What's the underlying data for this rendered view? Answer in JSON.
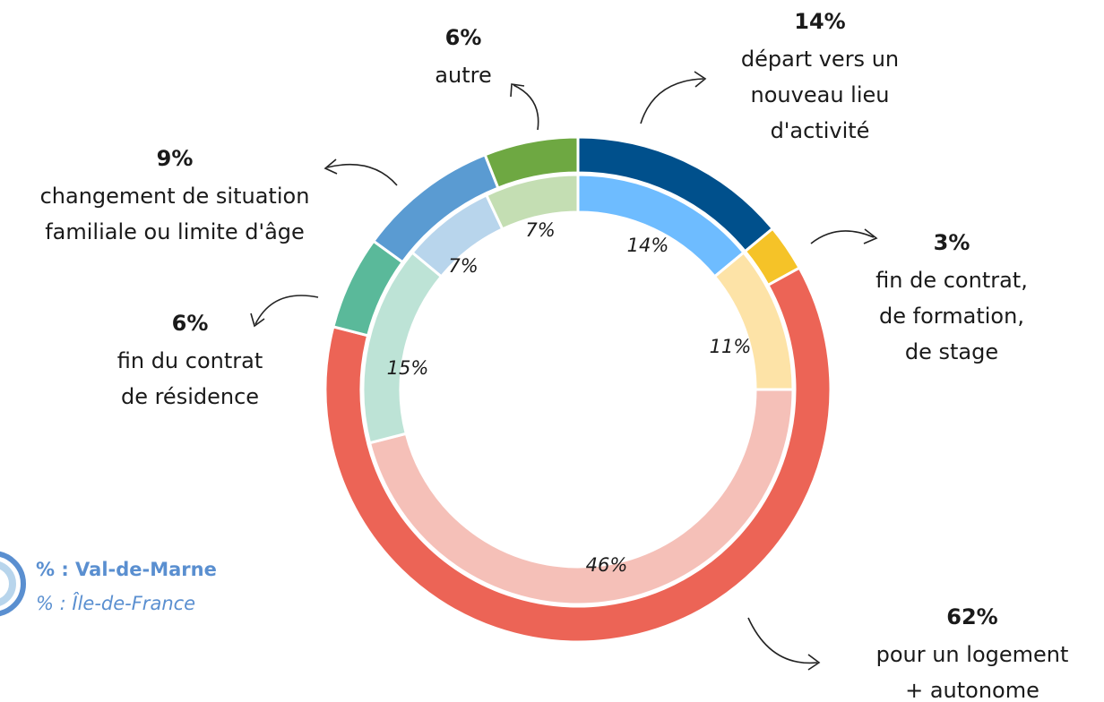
{
  "chart_data": {
    "type": "donut",
    "categories": [
      [
        "départ vers un",
        "nouveau lieu",
        "d'activité"
      ],
      [
        "fin de contrat,",
        "de formation,",
        "de stage"
      ],
      [
        "pour un logement",
        "+ autonome"
      ],
      [
        "fin du contrat",
        "de résidence"
      ],
      [
        "changement de situation",
        "familiale ou limite d'âge"
      ],
      [
        "autre"
      ]
    ],
    "series": [
      {
        "name": "% : Val-de-Marne",
        "values": [
          14,
          3,
          62,
          6,
          9,
          6
        ],
        "value_labels": [
          "14%",
          "3%",
          "62%",
          "6%",
          "9%",
          "6%"
        ],
        "colors": [
          "#00508c",
          "#f5c328",
          "#ec6456",
          "#5ab99a",
          "#5a9bd2",
          "#6ea842"
        ]
      },
      {
        "name": "% : Île-de-France",
        "values": [
          14,
          11,
          46,
          15,
          7,
          7
        ],
        "value_labels": [
          "14%",
          "11%",
          "46%",
          "15%",
          "7%",
          "7%"
        ],
        "colors": [
          "#6ebcff",
          "#fde3a7",
          "#f5c0b8",
          "#bde3d6",
          "#b8d5ec",
          "#c4deb3"
        ]
      }
    ]
  }
}
